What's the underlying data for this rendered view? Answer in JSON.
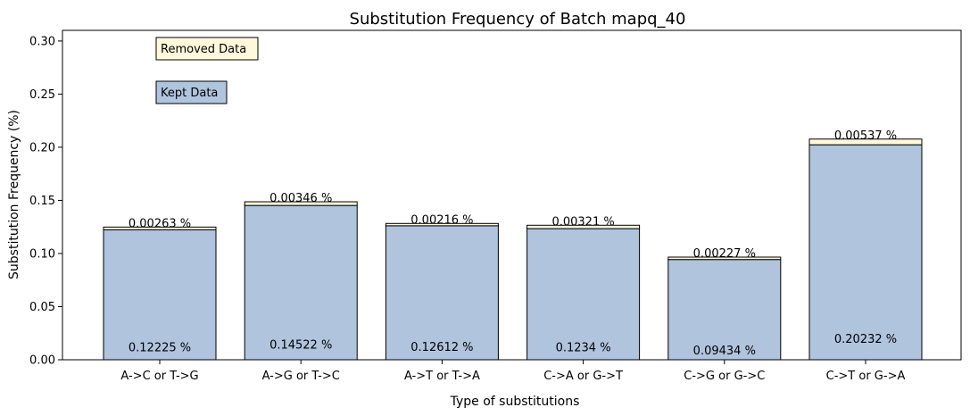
{
  "chart_data": {
    "type": "bar",
    "stacked": true,
    "title": "Substitution Frequency of Batch mapq_40",
    "xlabel": "Type of substitutions",
    "ylabel": "Substitution Frequency (%)",
    "ylim": [
      0,
      0.31
    ],
    "yticks": [
      "0.00",
      "0.05",
      "0.10",
      "0.15",
      "0.20",
      "0.25",
      "0.30"
    ],
    "categories": [
      "A->C or T->G",
      "A->G or T->C",
      "A->T or T->A",
      "C->A or G->T",
      "C->G or G->C",
      "C->T or G->A"
    ],
    "series": [
      {
        "name": "Kept Data",
        "color": "#b0c4de",
        "values": [
          0.12225,
          0.14522,
          0.12612,
          0.1234,
          0.09434,
          0.20232
        ],
        "labels": [
          "0.12225 %",
          "0.14522 %",
          "0.12612 %",
          "0.1234 %",
          "0.09434 %",
          "0.20232 %"
        ]
      },
      {
        "name": "Removed Data",
        "color": "#fff8dc",
        "values": [
          0.00263,
          0.00346,
          0.00216,
          0.00321,
          0.00227,
          0.00537
        ],
        "labels": [
          "0.00263 %",
          "0.00346 %",
          "0.00216 %",
          "0.00321 %",
          "0.00227 %",
          "0.00537 %"
        ]
      }
    ],
    "legend": [
      "Removed Data",
      "Kept Data"
    ],
    "legend_placement": "top-left",
    "grid": false
  }
}
